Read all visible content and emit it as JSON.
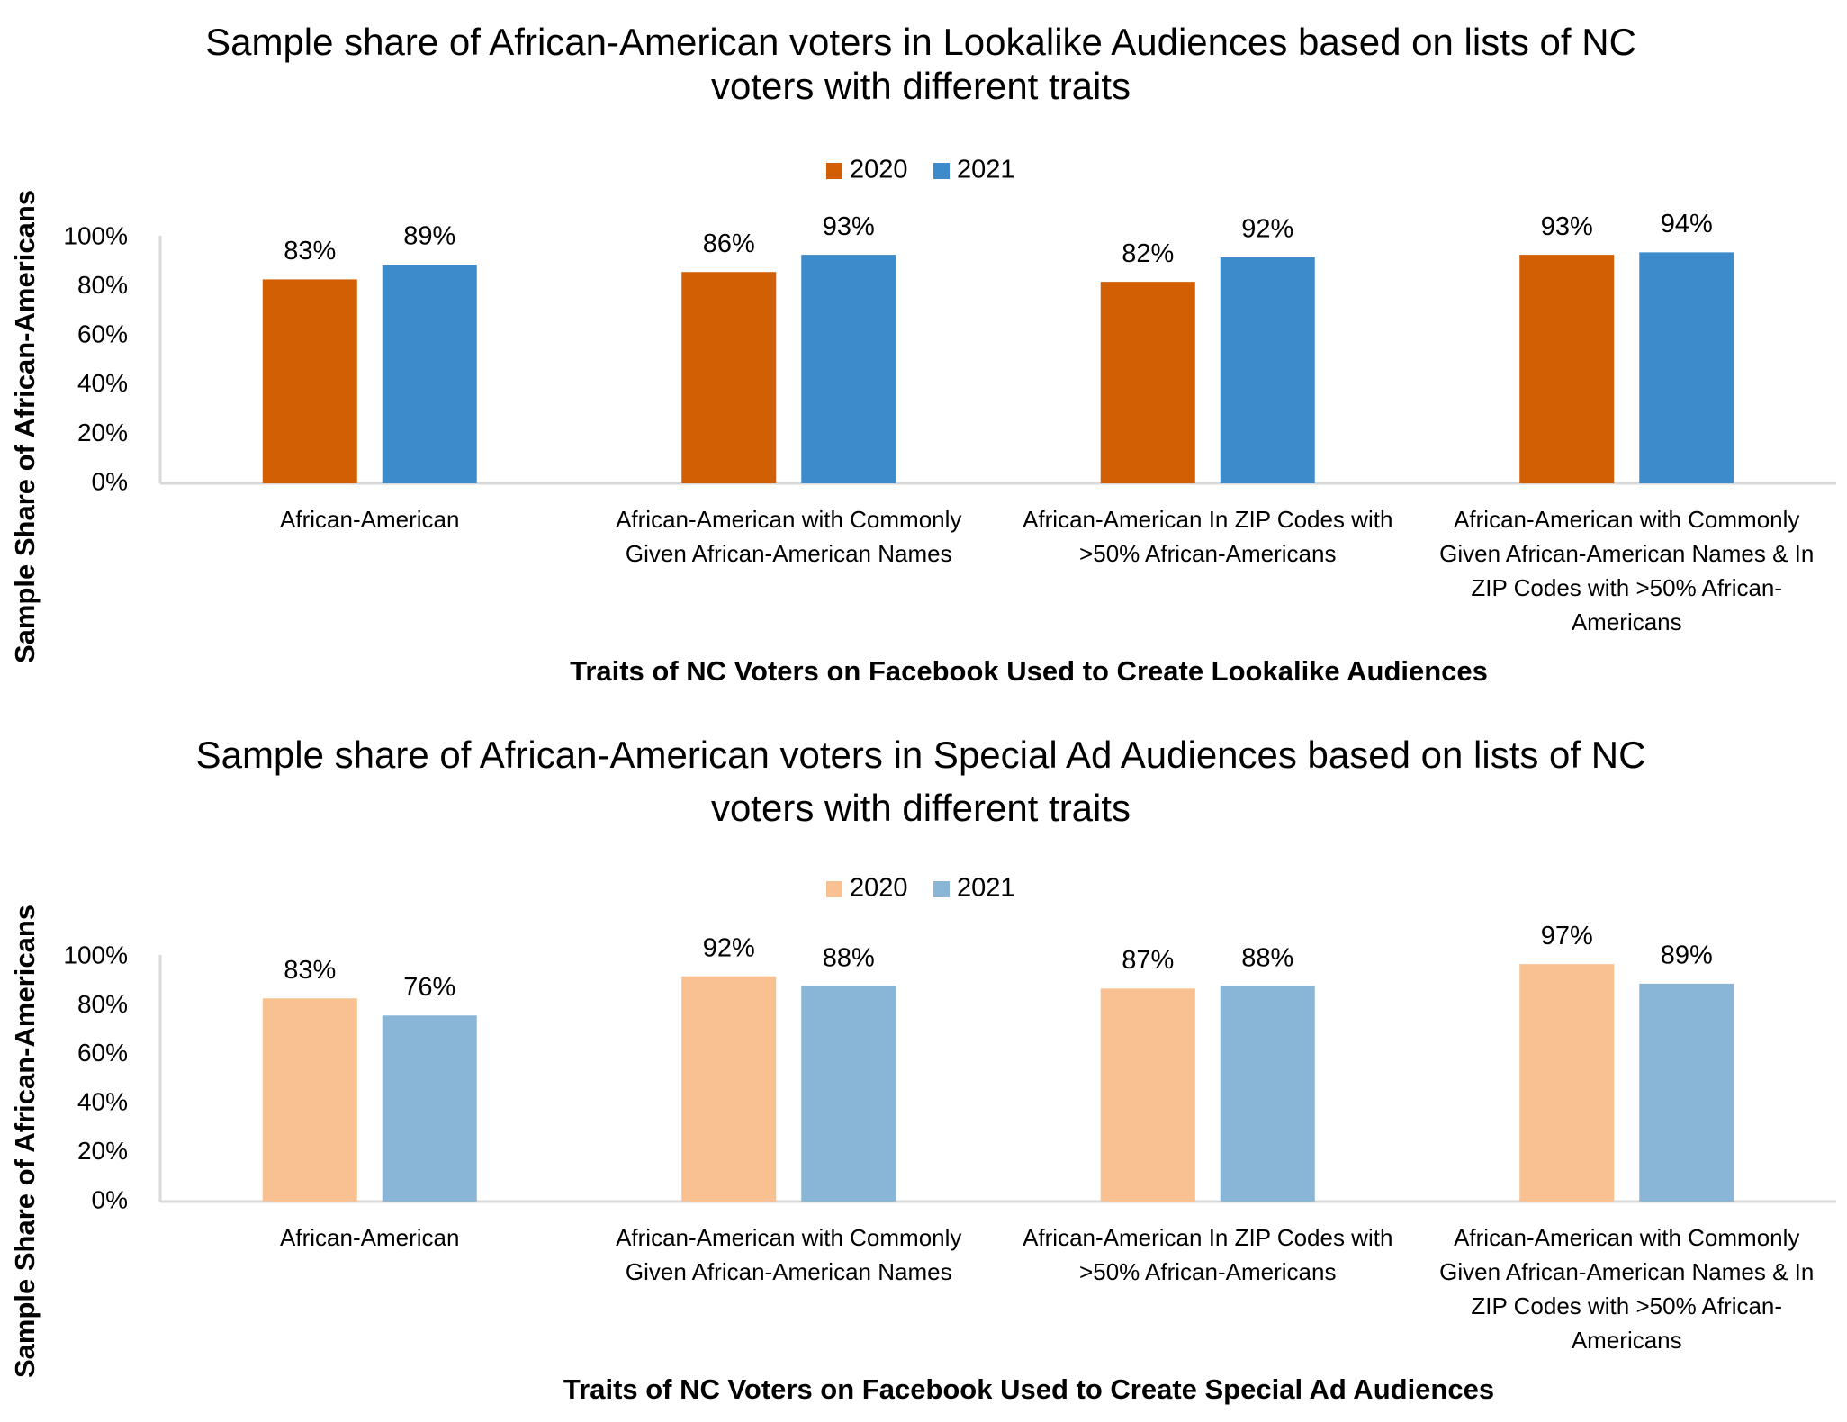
{
  "chart_data": [
    {
      "type": "bar",
      "title": [
        "Sample share of African-American voters in Lookalike Audiences based on lists of NC",
        "voters with different traits"
      ],
      "xlabel": "Traits of NC Voters on Facebook Used to Create Lookalike Audiences",
      "ylabel": "Sample Share of African-Americans",
      "ylim": [
        0,
        100
      ],
      "yticks": [
        "0%",
        "20%",
        "40%",
        "60%",
        "80%",
        "100%"
      ],
      "legend_position": "top-center",
      "grid": false,
      "categories": [
        [
          "African-American"
        ],
        [
          "African-American with Commonly",
          "Given African-American Names"
        ],
        [
          "African-American In ZIP Codes with",
          ">50% African-Americans"
        ],
        [
          "African-American with Commonly",
          "Given African-American Names & In",
          "ZIP Codes with >50% African-",
          "Americans"
        ]
      ],
      "series": [
        {
          "name": "2020",
          "color": "#d35f04",
          "values": [
            83,
            86,
            82,
            93
          ],
          "labels": [
            "83%",
            "86%",
            "82%",
            "93%"
          ]
        },
        {
          "name": "2021",
          "color": "#3d8bcb",
          "values": [
            89,
            93,
            92,
            94
          ],
          "labels": [
            "89%",
            "93%",
            "92%",
            "94%"
          ]
        }
      ]
    },
    {
      "type": "bar",
      "title": [
        "Sample share of African-American voters in Special Ad Audiences based on lists of NC",
        "voters with different traits"
      ],
      "xlabel": "Traits of NC Voters on Facebook Used to Create Special Ad Audiences",
      "ylabel": "Sample Share of African-Americans",
      "ylim": [
        0,
        100
      ],
      "yticks": [
        "0%",
        "20%",
        "40%",
        "60%",
        "80%",
        "100%"
      ],
      "legend_position": "top-center",
      "grid": false,
      "categories": [
        [
          "African-American"
        ],
        [
          "African-American with Commonly",
          "Given African-American Names"
        ],
        [
          "African-American In ZIP Codes with",
          ">50% African-Americans"
        ],
        [
          "African-American with Commonly",
          "Given African-American Names & In",
          "ZIP Codes with >50% African-",
          "Americans"
        ]
      ],
      "series": [
        {
          "name": "2020",
          "color": "#f9c191",
          "values": [
            83,
            92,
            87,
            97
          ],
          "labels": [
            "83%",
            "92%",
            "87%",
            "97%"
          ]
        },
        {
          "name": "2021",
          "color": "#89b5d7",
          "values": [
            76,
            88,
            88,
            89
          ],
          "labels": [
            "76%",
            "88%",
            "88%",
            "89%"
          ]
        }
      ]
    }
  ]
}
